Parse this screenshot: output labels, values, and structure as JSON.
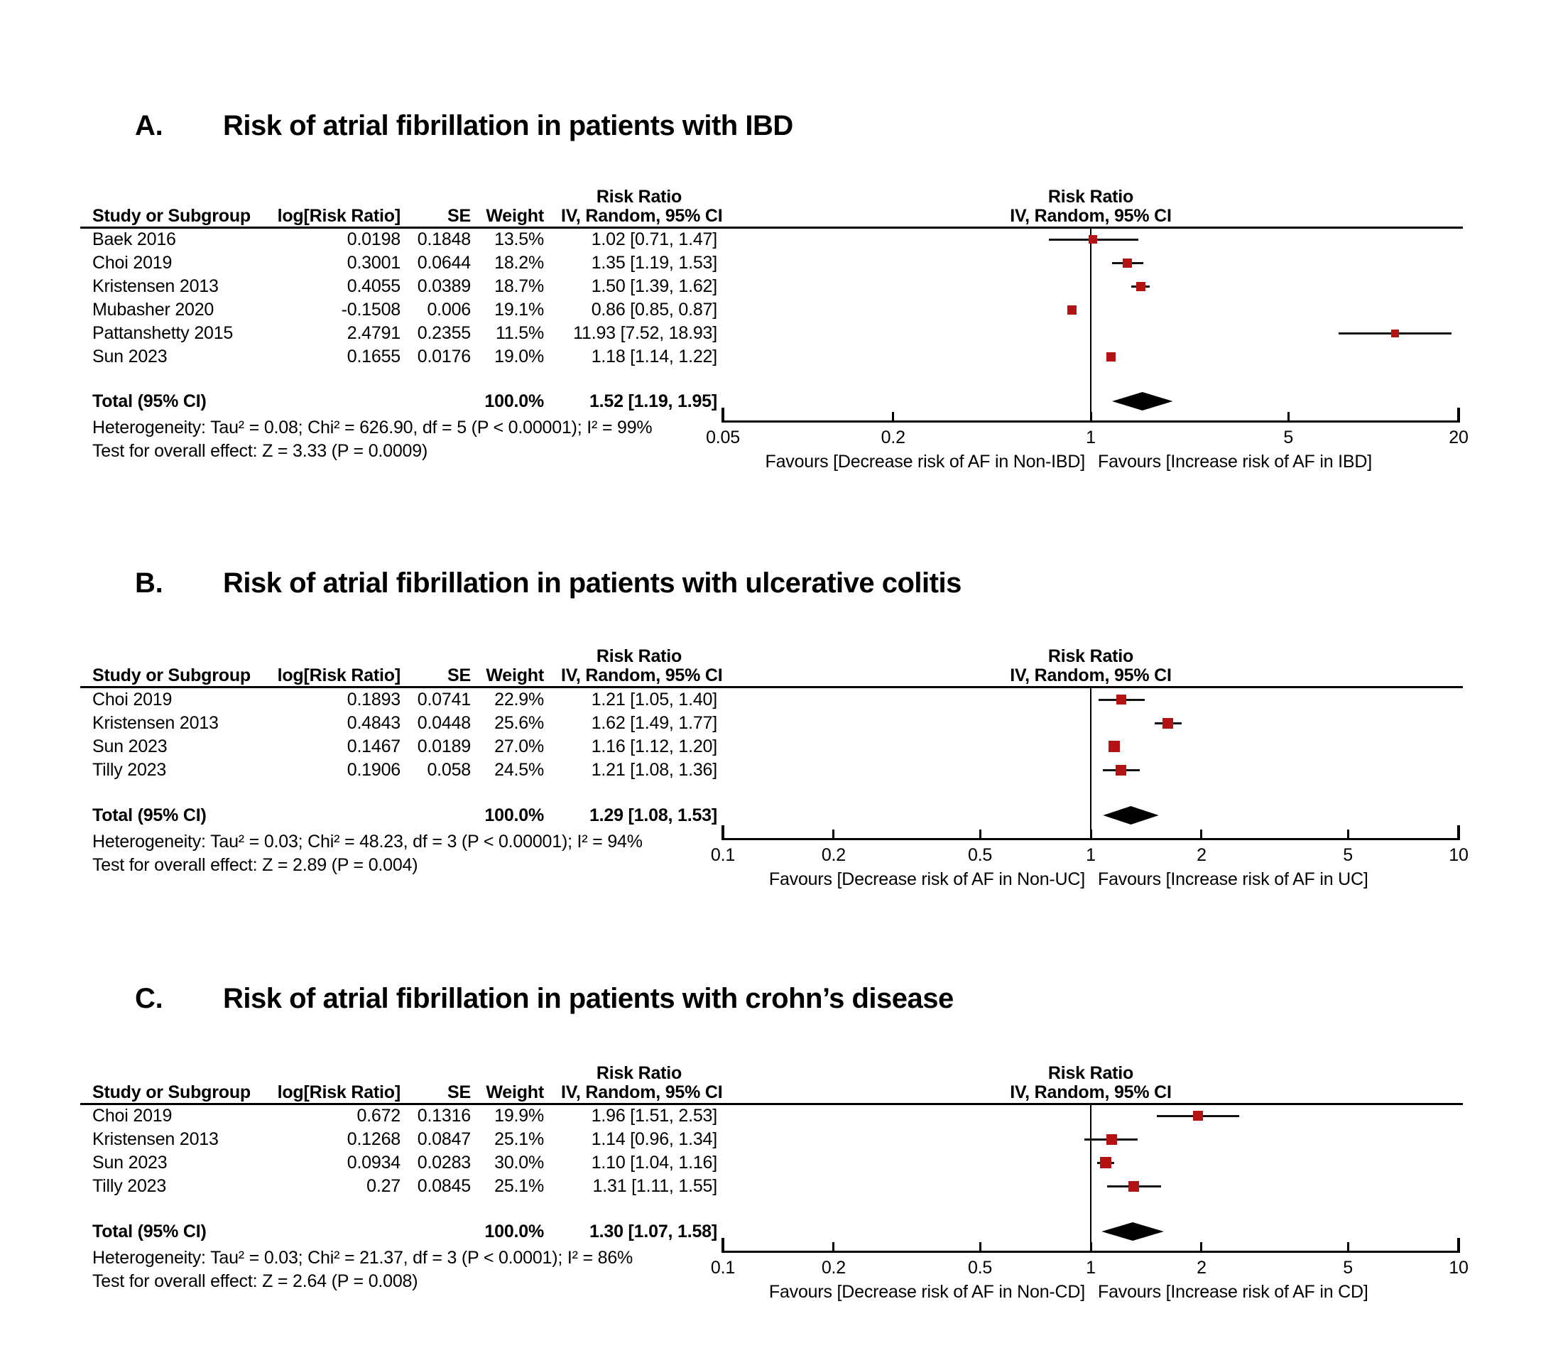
{
  "header_labels": {
    "study": "Study or Subgroup",
    "log_rr": "log[Risk Ratio]",
    "se": "SE",
    "weight": "Weight",
    "effect": "Risk Ratio",
    "method": "IV, Random, 95% CI"
  },
  "marker_color": "#b31312",
  "diamond_color": "#000000",
  "chart_data": [
    {
      "type": "scatter",
      "variant": "forest-plot",
      "panel": "A",
      "panel_label": "A.",
      "title": "Risk of atrial fibrillation in patients with IBD",
      "effect_measure": "Risk Ratio",
      "model": "IV, Random, 95% CI",
      "columns": [
        "Study or Subgroup",
        "log[Risk Ratio]",
        "SE",
        "Weight",
        "IV, Random, 95% CI"
      ],
      "studies": [
        {
          "name": "Baek 2016",
          "log_rr": "0.0198",
          "se": "0.1848",
          "weight": "13.5%",
          "weight_pct": 13.5,
          "rr": 1.02,
          "ci_low": 0.71,
          "ci_high": 1.47,
          "ci_text": "1.02 [0.71, 1.47]"
        },
        {
          "name": "Choi 2019",
          "log_rr": "0.3001",
          "se": "0.0644",
          "weight": "18.2%",
          "weight_pct": 18.2,
          "rr": 1.35,
          "ci_low": 1.19,
          "ci_high": 1.53,
          "ci_text": "1.35 [1.19, 1.53]"
        },
        {
          "name": "Kristensen 2013",
          "log_rr": "0.4055",
          "se": "0.0389",
          "weight": "18.7%",
          "weight_pct": 18.7,
          "rr": 1.5,
          "ci_low": 1.39,
          "ci_high": 1.62,
          "ci_text": "1.50 [1.39, 1.62]"
        },
        {
          "name": "Mubasher 2020",
          "log_rr": "-0.1508",
          "se": "0.006",
          "weight": "19.1%",
          "weight_pct": 19.1,
          "rr": 0.86,
          "ci_low": 0.85,
          "ci_high": 0.87,
          "ci_text": "0.86 [0.85, 0.87]"
        },
        {
          "name": "Pattanshetty 2015",
          "log_rr": "2.4791",
          "se": "0.2355",
          "weight": "11.5%",
          "weight_pct": 11.5,
          "rr": 11.93,
          "ci_low": 7.52,
          "ci_high": 18.93,
          "ci_text": "11.93 [7.52, 18.93]"
        },
        {
          "name": "Sun 2023",
          "log_rr": "0.1655",
          "se": "0.0176",
          "weight": "19.0%",
          "weight_pct": 19.0,
          "rr": 1.18,
          "ci_low": 1.14,
          "ci_high": 1.22,
          "ci_text": "1.18 [1.14, 1.22]"
        }
      ],
      "total": {
        "label": "Total (95% CI)",
        "weight": "100.0%",
        "rr": 1.52,
        "ci_low": 1.19,
        "ci_high": 1.95,
        "ci_text": "1.52 [1.19, 1.95]"
      },
      "heterogeneity": "Heterogeneity: Tau² = 0.08; Chi² = 626.90, df = 5 (P < 0.00001); I² = 99%",
      "overall_effect": "Test for overall effect: Z = 3.33 (P = 0.0009)",
      "x_axis": {
        "scale": "log",
        "min": 0.05,
        "max": 20,
        "ticks": [
          "0.05",
          "0.2",
          "1",
          "5",
          "20"
        ]
      },
      "favours_left": "Favours [Decrease risk of AF in Non-IBD]",
      "favours_right": "Favours [Increase risk of AF in IBD]"
    },
    {
      "type": "scatter",
      "variant": "forest-plot",
      "panel": "B",
      "panel_label": "B.",
      "title": "Risk of atrial fibrillation in patients with ulcerative colitis",
      "effect_measure": "Risk Ratio",
      "model": "IV, Random, 95% CI",
      "columns": [
        "Study or Subgroup",
        "log[Risk Ratio]",
        "SE",
        "Weight",
        "IV, Random, 95% CI"
      ],
      "studies": [
        {
          "name": "Choi 2019",
          "log_rr": "0.1893",
          "se": "0.0741",
          "weight": "22.9%",
          "weight_pct": 22.9,
          "rr": 1.21,
          "ci_low": 1.05,
          "ci_high": 1.4,
          "ci_text": "1.21 [1.05, 1.40]"
        },
        {
          "name": "Kristensen 2013",
          "log_rr": "0.4843",
          "se": "0.0448",
          "weight": "25.6%",
          "weight_pct": 25.6,
          "rr": 1.62,
          "ci_low": 1.49,
          "ci_high": 1.77,
          "ci_text": "1.62 [1.49, 1.77]"
        },
        {
          "name": "Sun 2023",
          "log_rr": "0.1467",
          "se": "0.0189",
          "weight": "27.0%",
          "weight_pct": 27.0,
          "rr": 1.16,
          "ci_low": 1.12,
          "ci_high": 1.2,
          "ci_text": "1.16 [1.12, 1.20]"
        },
        {
          "name": "Tilly 2023",
          "log_rr": "0.1906",
          "se": "0.058",
          "weight": "24.5%",
          "weight_pct": 24.5,
          "rr": 1.21,
          "ci_low": 1.08,
          "ci_high": 1.36,
          "ci_text": "1.21 [1.08, 1.36]"
        }
      ],
      "total": {
        "label": "Total (95% CI)",
        "weight": "100.0%",
        "rr": 1.29,
        "ci_low": 1.08,
        "ci_high": 1.53,
        "ci_text": "1.29 [1.08, 1.53]"
      },
      "heterogeneity": "Heterogeneity: Tau² = 0.03; Chi² = 48.23, df = 3 (P < 0.00001); I² = 94%",
      "overall_effect": "Test for overall effect: Z = 2.89 (P = 0.004)",
      "x_axis": {
        "scale": "log",
        "min": 0.1,
        "max": 10,
        "ticks": [
          "0.1",
          "0.2",
          "0.5",
          "1",
          "2",
          "5",
          "10"
        ]
      },
      "favours_left": "Favours [Decrease risk of AF in Non-UC]",
      "favours_right": "Favours [Increase risk of AF in UC]"
    },
    {
      "type": "scatter",
      "variant": "forest-plot",
      "panel": "C",
      "panel_label": "C.",
      "title": "Risk of atrial fibrillation in patients with crohn’s disease",
      "effect_measure": "Risk Ratio",
      "model": "IV, Random, 95% CI",
      "columns": [
        "Study or Subgroup",
        "log[Risk Ratio]",
        "SE",
        "Weight",
        "IV, Random, 95% CI"
      ],
      "studies": [
        {
          "name": "Choi 2019",
          "log_rr": "0.672",
          "se": "0.1316",
          "weight": "19.9%",
          "weight_pct": 19.9,
          "rr": 1.96,
          "ci_low": 1.51,
          "ci_high": 2.53,
          "ci_text": "1.96 [1.51, 2.53]"
        },
        {
          "name": "Kristensen 2013",
          "log_rr": "0.1268",
          "se": "0.0847",
          "weight": "25.1%",
          "weight_pct": 25.1,
          "rr": 1.14,
          "ci_low": 0.96,
          "ci_high": 1.34,
          "ci_text": "1.14 [0.96, 1.34]"
        },
        {
          "name": "Sun 2023",
          "log_rr": "0.0934",
          "se": "0.0283",
          "weight": "30.0%",
          "weight_pct": 30.0,
          "rr": 1.1,
          "ci_low": 1.04,
          "ci_high": 1.16,
          "ci_text": "1.10 [1.04, 1.16]"
        },
        {
          "name": "Tilly 2023",
          "log_rr": "0.27",
          "se": "0.0845",
          "weight": "25.1%",
          "weight_pct": 25.1,
          "rr": 1.31,
          "ci_low": 1.11,
          "ci_high": 1.55,
          "ci_text": "1.31 [1.11, 1.55]"
        }
      ],
      "total": {
        "label": "Total (95% CI)",
        "weight": "100.0%",
        "rr": 1.3,
        "ci_low": 1.07,
        "ci_high": 1.58,
        "ci_text": "1.30 [1.07, 1.58]"
      },
      "heterogeneity": "Heterogeneity: Tau² = 0.03; Chi² = 21.37, df = 3 (P < 0.0001); I² = 86%",
      "overall_effect": "Test for overall effect: Z = 2.64 (P = 0.008)",
      "x_axis": {
        "scale": "log",
        "min": 0.1,
        "max": 10,
        "ticks": [
          "0.1",
          "0.2",
          "0.5",
          "1",
          "2",
          "5",
          "10"
        ]
      },
      "favours_left": "Favours [Decrease risk of AF in Non-CD]",
      "favours_right": "Favours [Increase risk of AF in CD]"
    }
  ]
}
